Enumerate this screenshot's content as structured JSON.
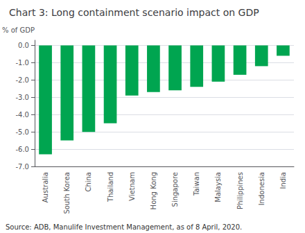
{
  "chart_data": {
    "type": "bar",
    "title": "Chart 3: Long containment scenario impact on GDP",
    "ylabel": "% of GDP",
    "source": "Source: ADB, Manulife Investment Management, as of 8 April, 2020.",
    "categories": [
      "Australia",
      "South Korea",
      "China",
      "Thailand",
      "Vietnam",
      "Hong Kong",
      "Singapore",
      "Taiwan",
      "Malaysia",
      "Philippines",
      "Indonesia",
      "India"
    ],
    "values": [
      -6.3,
      -5.5,
      -5.0,
      -4.5,
      -2.9,
      -2.7,
      -2.6,
      -2.4,
      -2.1,
      -1.7,
      -1.2,
      -0.6
    ],
    "color": "#00A550",
    "ylim": [
      -7.0,
      0.3
    ],
    "yticks": [
      {
        "value": 0.0,
        "label": "0.0"
      },
      {
        "value": -1.0,
        "label": "-1.0"
      },
      {
        "value": -2.0,
        "label": "-2.0"
      },
      {
        "value": -3.0,
        "label": "-3.0"
      },
      {
        "value": -4.0,
        "label": "-4.0"
      },
      {
        "value": -5.0,
        "label": "-5.0"
      },
      {
        "value": -6.0,
        "label": "-6.0"
      },
      {
        "value": -7.0,
        "label": "-7.0"
      }
    ],
    "grid": true
  }
}
